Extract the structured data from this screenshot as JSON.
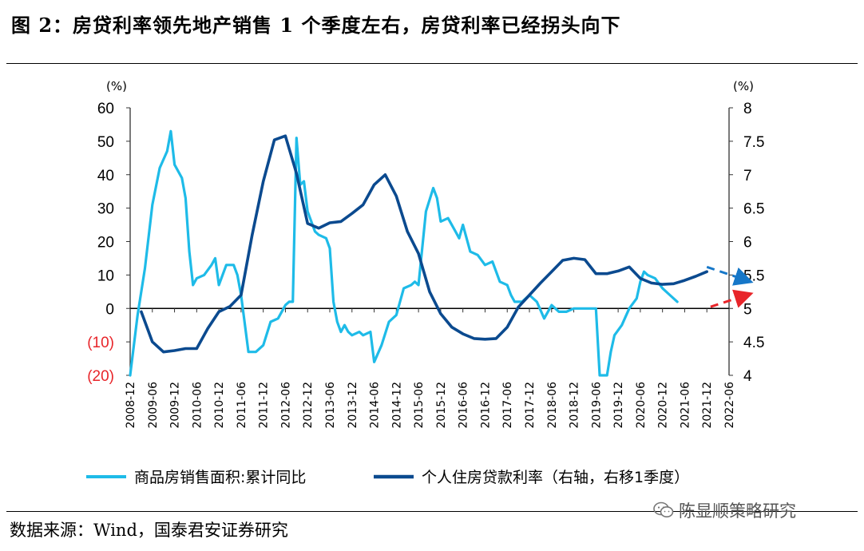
{
  "figure": {
    "title": "图 2：房贷利率领先地产销售 1 个季度左右，房贷利率已经拐头向下",
    "source": "数据来源：Wind，国泰君安证券研究",
    "watermark": "陈显顺策略研究"
  },
  "colors": {
    "sales": "#1EBBE8",
    "rate": "#0B4A8F",
    "axis": "#333333",
    "negative_tick": "#E8252A",
    "red_arrow": "#E8252A",
    "blue_arrow": "#1677C8"
  },
  "icons": {
    "watermark": "wechat-icon"
  },
  "chart_data": {
    "type": "line",
    "title": "",
    "left_axis": {
      "unit": "(%)",
      "ylim": [
        -20,
        60
      ],
      "ticks": [
        {
          "v": 60,
          "label": "60"
        },
        {
          "v": 50,
          "label": "50"
        },
        {
          "v": 40,
          "label": "40"
        },
        {
          "v": 30,
          "label": "30"
        },
        {
          "v": 20,
          "label": "20"
        },
        {
          "v": 10,
          "label": "10"
        },
        {
          "v": 0,
          "label": "0"
        },
        {
          "v": -10,
          "label": "(10)"
        },
        {
          "v": -20,
          "label": "(20)"
        }
      ]
    },
    "right_axis": {
      "unit": "(%)",
      "ylim": [
        4,
        8
      ],
      "ticks": [
        {
          "v": 8,
          "label": "8"
        },
        {
          "v": 7.5,
          "label": "7.5"
        },
        {
          "v": 7,
          "label": "7"
        },
        {
          "v": 6.5,
          "label": "6.5"
        },
        {
          "v": 6,
          "label": "6"
        },
        {
          "v": 5.5,
          "label": "5.5"
        },
        {
          "v": 5,
          "label": "5"
        },
        {
          "v": 4.5,
          "label": "4.5"
        },
        {
          "v": 4,
          "label": "4"
        }
      ]
    },
    "x_axis": {
      "start": "2008-12",
      "end": "2022-06",
      "tick_labels": [
        "2008-12",
        "2009-06",
        "2009-12",
        "2010-06",
        "2010-12",
        "2011-06",
        "2011-12",
        "2012-06",
        "2012-12",
        "2013-06",
        "2013-12",
        "2014-06",
        "2014-12",
        "2015-06",
        "2015-12",
        "2016-06",
        "2016-12",
        "2017-06",
        "2017-12",
        "2018-06",
        "2018-12",
        "2019-06",
        "2019-12",
        "2020-06",
        "2020-12",
        "2021-06",
        "2021-12",
        "2022-06"
      ]
    },
    "series": [
      {
        "name": "商品房销售面积:累计同比",
        "axis": "left",
        "points": [
          [
            "2008-12",
            -20
          ],
          [
            "2009-02",
            -2
          ],
          [
            "2009-04",
            12
          ],
          [
            "2009-06",
            31
          ],
          [
            "2009-08",
            42
          ],
          [
            "2009-10",
            47
          ],
          [
            "2009-11",
            53
          ],
          [
            "2009-12",
            43
          ],
          [
            "2010-02",
            39
          ],
          [
            "2010-03",
            33
          ],
          [
            "2010-04",
            17
          ],
          [
            "2010-05",
            7
          ],
          [
            "2010-06",
            9
          ],
          [
            "2010-08",
            10
          ],
          [
            "2010-10",
            13
          ],
          [
            "2010-11",
            15
          ],
          [
            "2010-12",
            7
          ],
          [
            "2011-02",
            13
          ],
          [
            "2011-04",
            13
          ],
          [
            "2011-05",
            10
          ],
          [
            "2011-06",
            4
          ],
          [
            "2011-08",
            -13
          ],
          [
            "2011-10",
            -13
          ],
          [
            "2011-12",
            -11
          ],
          [
            "2012-02",
            -4
          ],
          [
            "2012-04",
            -3
          ],
          [
            "2012-06",
            1
          ],
          [
            "2012-07",
            2
          ],
          [
            "2012-08",
            2
          ],
          [
            "2012-09",
            51
          ],
          [
            "2012-10",
            37
          ],
          [
            "2012-11",
            38
          ],
          [
            "2012-12",
            29
          ],
          [
            "2013-02",
            23
          ],
          [
            "2013-03",
            22
          ],
          [
            "2013-05",
            21
          ],
          [
            "2013-06",
            18
          ],
          [
            "2013-07",
            2
          ],
          [
            "2013-08",
            -4
          ],
          [
            "2013-09",
            -7
          ],
          [
            "2013-10",
            -5
          ],
          [
            "2013-11",
            -7
          ],
          [
            "2013-12",
            -8
          ],
          [
            "2014-02",
            -7
          ],
          [
            "2014-03",
            -8
          ],
          [
            "2014-05",
            -7
          ],
          [
            "2014-06",
            -16
          ],
          [
            "2014-08",
            -11
          ],
          [
            "2014-10",
            -4
          ],
          [
            "2014-12",
            -2
          ],
          [
            "2015-02",
            6
          ],
          [
            "2015-04",
            7
          ],
          [
            "2015-05",
            8
          ],
          [
            "2015-06",
            7
          ],
          [
            "2015-08",
            29
          ],
          [
            "2015-10",
            36
          ],
          [
            "2015-11",
            33
          ],
          [
            "2015-12",
            26
          ],
          [
            "2016-02",
            27
          ],
          [
            "2016-04",
            23
          ],
          [
            "2016-05",
            21
          ],
          [
            "2016-06",
            25
          ],
          [
            "2016-08",
            17
          ],
          [
            "2016-10",
            16
          ],
          [
            "2016-12",
            13
          ],
          [
            "2017-02",
            14
          ],
          [
            "2017-04",
            8
          ],
          [
            "2017-06",
            7
          ],
          [
            "2017-07",
            4
          ],
          [
            "2017-08",
            2
          ],
          [
            "2017-10",
            2
          ],
          [
            "2017-12",
            4
          ],
          [
            "2018-02",
            2
          ],
          [
            "2018-04",
            -3
          ],
          [
            "2018-06",
            1
          ],
          [
            "2018-08",
            -1
          ],
          [
            "2018-10",
            -1
          ],
          [
            "2018-12",
            0
          ],
          [
            "2019-04",
            0
          ],
          [
            "2019-06",
            0
          ],
          [
            "2019-07",
            -20
          ],
          [
            "2019-09",
            -20
          ],
          [
            "2019-10",
            -13
          ],
          [
            "2019-11",
            -8
          ],
          [
            "2020-01",
            -5
          ],
          [
            "2020-03",
            0
          ],
          [
            "2020-05",
            3
          ],
          [
            "2020-06",
            8
          ],
          [
            "2020-07",
            11
          ],
          [
            "2020-08",
            10
          ],
          [
            "2020-10",
            9
          ],
          [
            "2020-12",
            6
          ],
          [
            "2021-02",
            4
          ],
          [
            "2021-04",
            2
          ]
        ]
      },
      {
        "name": "个人住房贷款利率（右轴，右移1季度）",
        "axis": "right",
        "points": [
          [
            "2009-03",
            4.95
          ],
          [
            "2009-06",
            4.5
          ],
          [
            "2009-09",
            4.35
          ],
          [
            "2009-12",
            4.37
          ],
          [
            "2010-03",
            4.4
          ],
          [
            "2010-06",
            4.4
          ],
          [
            "2010-09",
            4.7
          ],
          [
            "2010-12",
            4.95
          ],
          [
            "2011-03",
            5.03
          ],
          [
            "2011-06",
            5.2
          ],
          [
            "2011-09",
            6.1
          ],
          [
            "2011-12",
            6.9
          ],
          [
            "2012-03",
            7.52
          ],
          [
            "2012-06",
            7.58
          ],
          [
            "2012-09",
            7.02
          ],
          [
            "2012-12",
            6.27
          ],
          [
            "2013-03",
            6.2
          ],
          [
            "2013-06",
            6.28
          ],
          [
            "2013-09",
            6.3
          ],
          [
            "2013-12",
            6.42
          ],
          [
            "2014-03",
            6.55
          ],
          [
            "2014-06",
            6.85
          ],
          [
            "2014-09",
            7.0
          ],
          [
            "2014-12",
            6.68
          ],
          [
            "2015-03",
            6.15
          ],
          [
            "2015-06",
            5.82
          ],
          [
            "2015-09",
            5.25
          ],
          [
            "2015-12",
            4.92
          ],
          [
            "2016-03",
            4.72
          ],
          [
            "2016-06",
            4.62
          ],
          [
            "2016-09",
            4.55
          ],
          [
            "2016-12",
            4.54
          ],
          [
            "2017-03",
            4.55
          ],
          [
            "2017-06",
            4.72
          ],
          [
            "2017-09",
            5.02
          ],
          [
            "2017-12",
            5.2
          ],
          [
            "2018-03",
            5.38
          ],
          [
            "2018-06",
            5.55
          ],
          [
            "2018-09",
            5.72
          ],
          [
            "2018-12",
            5.75
          ],
          [
            "2019-03",
            5.73
          ],
          [
            "2019-06",
            5.52
          ],
          [
            "2019-09",
            5.52
          ],
          [
            "2019-12",
            5.56
          ],
          [
            "2020-03",
            5.62
          ],
          [
            "2020-06",
            5.45
          ],
          [
            "2020-09",
            5.38
          ],
          [
            "2020-12",
            5.36
          ],
          [
            "2021-03",
            5.37
          ],
          [
            "2021-06",
            5.42
          ],
          [
            "2021-09",
            5.48
          ],
          [
            "2021-12",
            5.55
          ]
        ]
      }
    ],
    "annotations": [
      {
        "type": "dashed-arrow",
        "series": "个人住房贷款利率（右轴，右移1季度）",
        "from": [
          "2021-12",
          5.62
        ],
        "to": [
          "2022-06",
          5.42
        ]
      },
      {
        "type": "dashed-arrow",
        "series": "商品房销售面积:累计同比",
        "from": [
          "2022-01",
          0.5
        ],
        "to": [
          "2022-06",
          4.0
        ]
      }
    ],
    "legend_position": "bottom"
  }
}
